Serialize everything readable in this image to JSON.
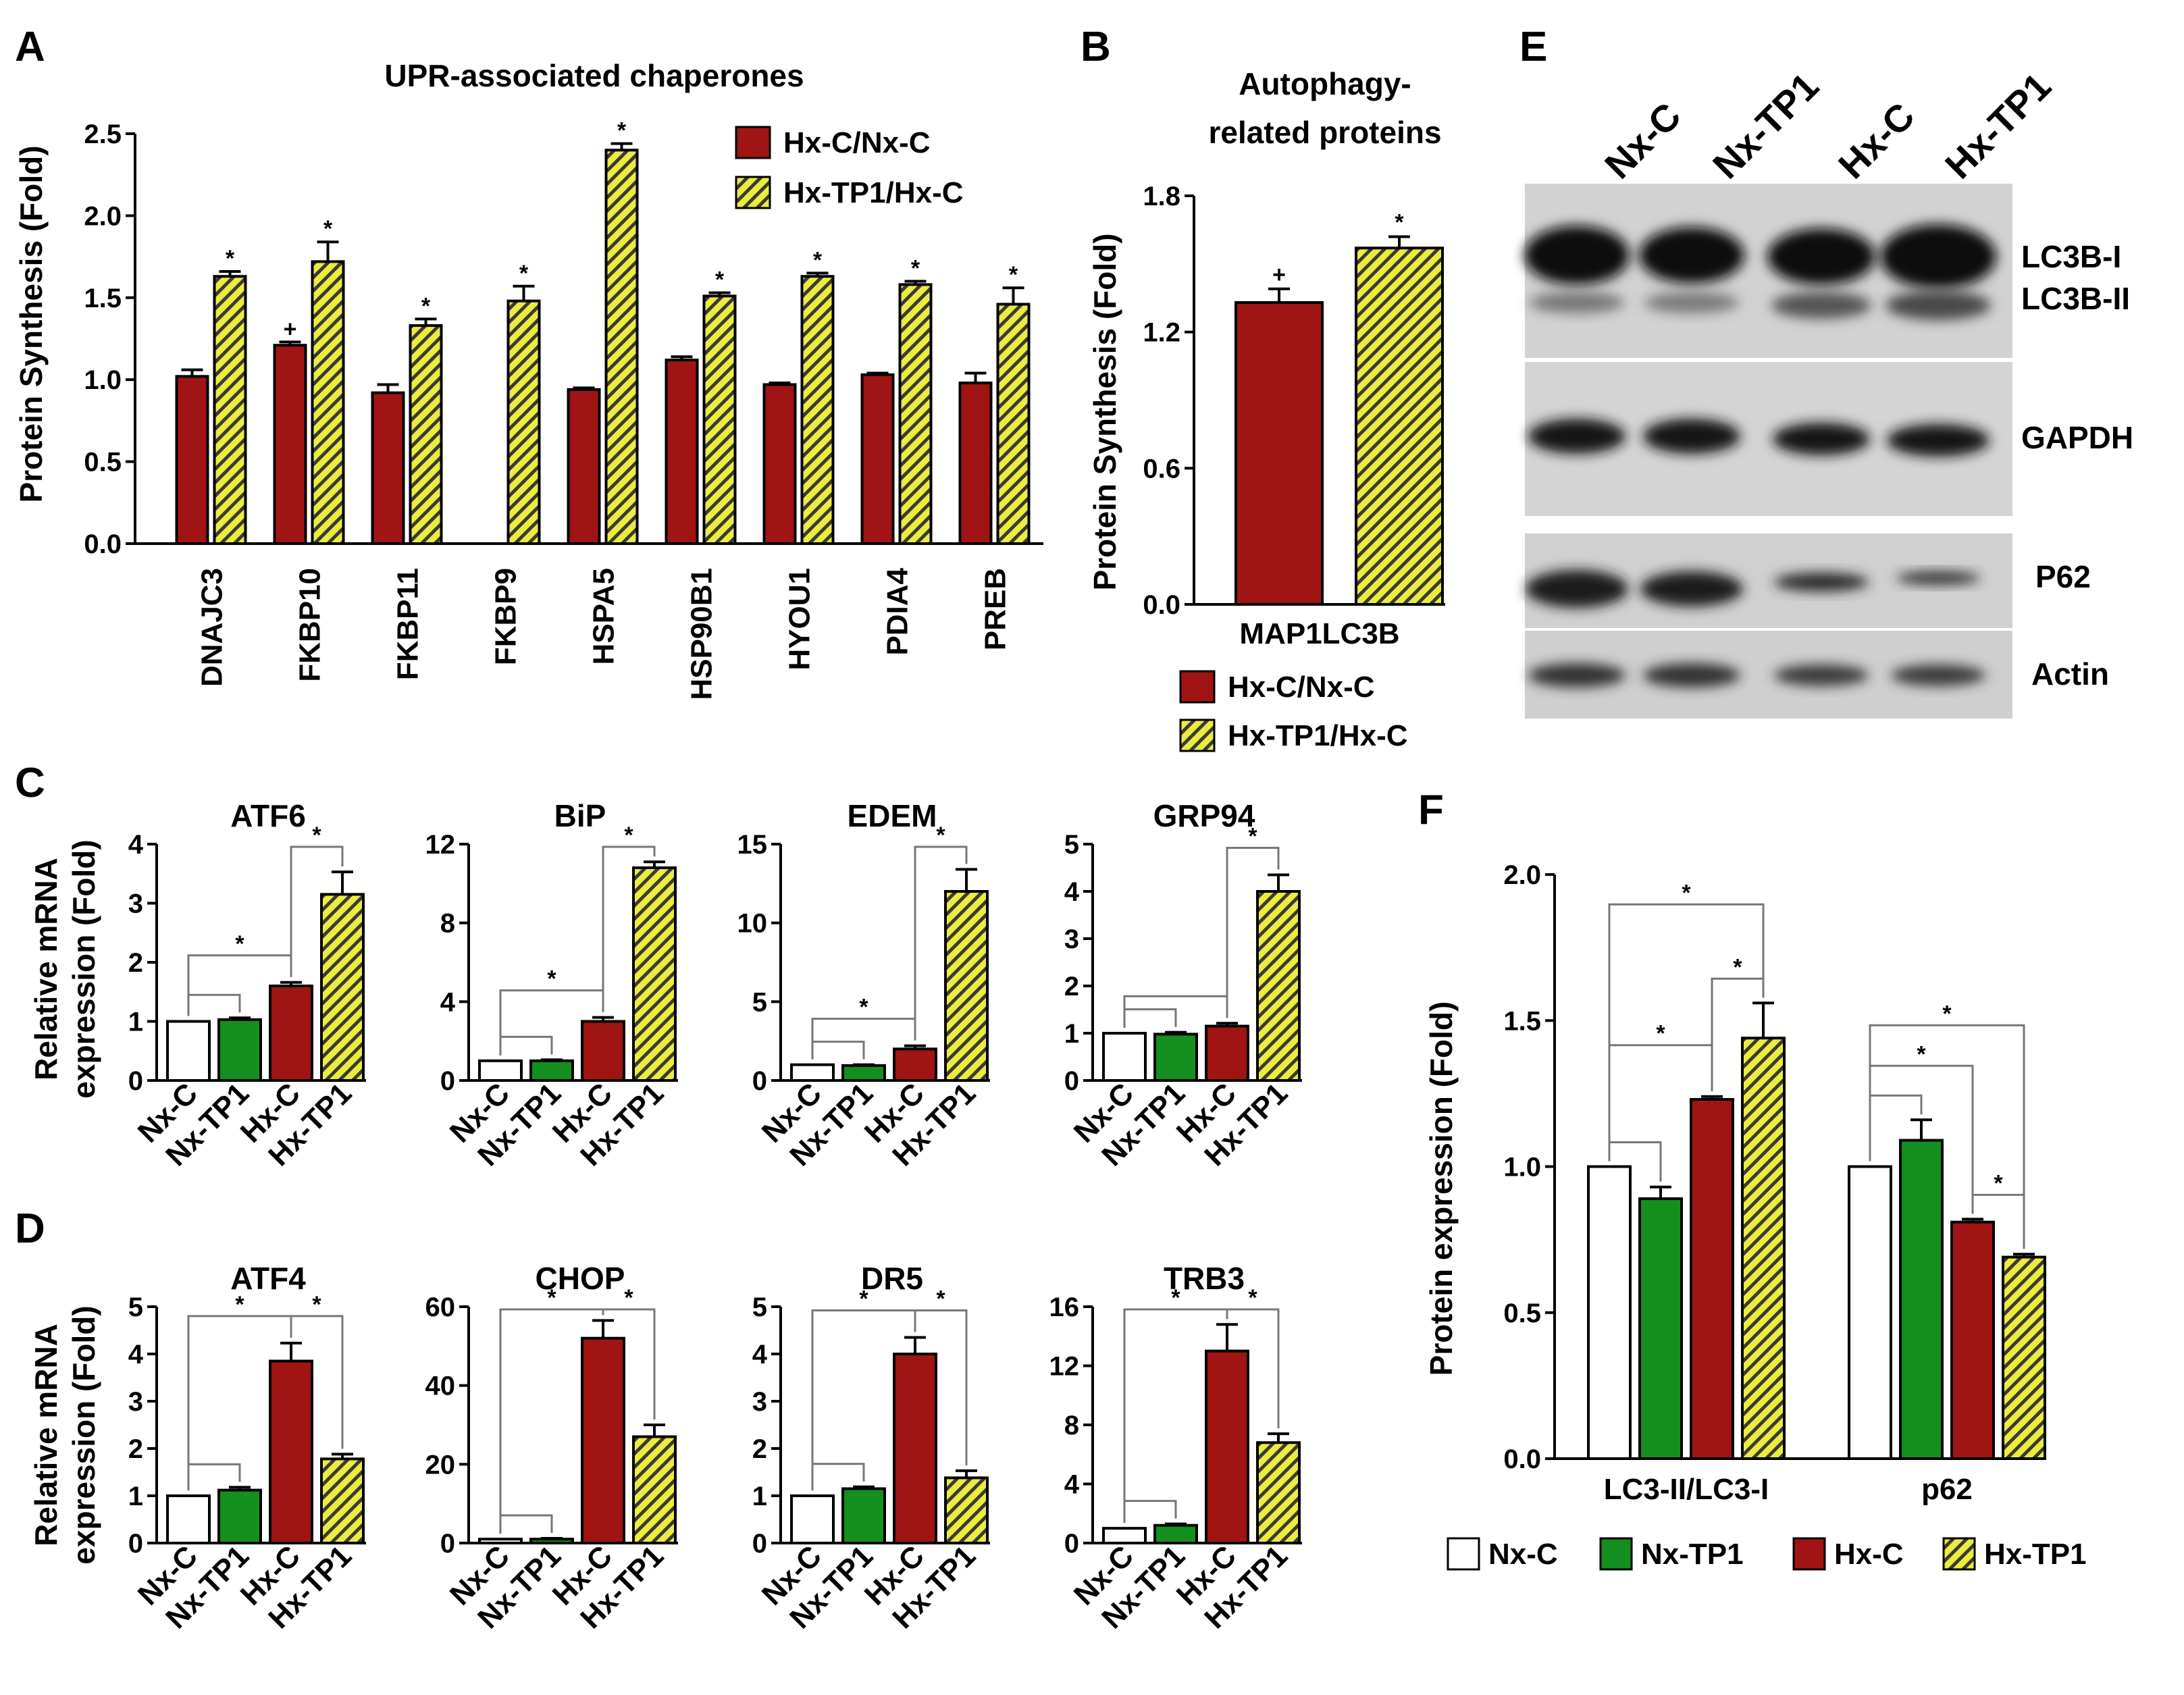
{
  "colors": {
    "hx_c": "#a01414",
    "nx_tp1": "#138f1f",
    "nx_c": "#ffffff",
    "hx_tp1": "#ecec3c",
    "hatch": "#333333"
  },
  "legend_ratio": [
    {
      "label": "Hx-C/Nx-C",
      "pattern": "solid-red"
    },
    {
      "label": "Hx-TP1/Hx-C",
      "pattern": "hatched-yellow"
    }
  ],
  "legend_groups": [
    {
      "label": "Nx-C",
      "pattern": "white"
    },
    {
      "label": "Nx-TP1",
      "pattern": "green"
    },
    {
      "label": "Hx-C",
      "pattern": "red"
    },
    {
      "label": "Hx-TP1",
      "pattern": "hatched-yellow"
    }
  ],
  "groups": [
    "Nx-C",
    "Nx-TP1",
    "Hx-C",
    "Hx-TP1"
  ],
  "panels": {
    "A": {
      "letter": "A",
      "title": "UPR-associated chaperones",
      "ylabel": "Protein Synthesis (Fold)"
    },
    "B": {
      "letter": "B",
      "title_line1": "Autophagy-",
      "title_line2": "related proteins",
      "ylabel": "Protein Synthesis (Fold)"
    },
    "C": {
      "letter": "C",
      "ylabel_line1": "Relative mRNA",
      "ylabel_line2": "expression (Fold)"
    },
    "D": {
      "letter": "D",
      "ylabel_line1": "Relative mRNA",
      "ylabel_line2": "expression (Fold)"
    },
    "E": {
      "letter": "E"
    },
    "F": {
      "letter": "F",
      "ylabel": "Protein expression (Fold)"
    }
  },
  "blot": {
    "lanes": [
      "Nx-C",
      "Nx-TP1",
      "Hx-C",
      "Hx-TP1"
    ],
    "labels": [
      "LC3B-I",
      "LC3B-II",
      "GAPDH",
      "P62",
      "Actin"
    ]
  },
  "chart_data": [
    {
      "id": "A",
      "type": "bar",
      "title": "UPR-associated chaperones",
      "ylabel": "Protein Synthesis (Fold)",
      "ylim": [
        0,
        2.5
      ],
      "yticks": [
        "0.0",
        "0.5",
        "1.0",
        "1.5",
        "2.0",
        "2.5"
      ],
      "categories": [
        "DNAJC3",
        "FKBP10",
        "FKBP11",
        "FKBP9",
        "HSPA5",
        "HSP90B1",
        "HYOU1",
        "PDIA4",
        "PREB"
      ],
      "series": [
        {
          "name": "Hx-C/Nx-C",
          "values": [
            1.02,
            1.21,
            0.92,
            null,
            0.94,
            1.12,
            0.97,
            1.03,
            0.98
          ],
          "errors": [
            0.04,
            0.02,
            0.05,
            null,
            0.01,
            0.02,
            0.01,
            0.01,
            0.06
          ],
          "marks": [
            "",
            "+",
            "",
            "",
            "",
            "",
            "",
            "",
            ""
          ]
        },
        {
          "name": "Hx-TP1/Hx-C",
          "values": [
            1.63,
            1.72,
            1.33,
            1.48,
            2.4,
            1.51,
            1.63,
            1.58,
            1.46
          ],
          "errors": [
            0.03,
            0.12,
            0.04,
            0.09,
            0.04,
            0.02,
            0.02,
            0.02,
            0.1
          ],
          "marks": [
            "*",
            "*",
            "*",
            "*",
            "*",
            "*",
            "*",
            "*",
            "*"
          ]
        }
      ]
    },
    {
      "id": "B",
      "type": "bar",
      "title": "Autophagy-related proteins",
      "ylabel": "Protein Synthesis (Fold)",
      "ylim": [
        0,
        1.8
      ],
      "yticks": [
        "0.0",
        "0.6",
        "1.2",
        "1.8"
      ],
      "categories": [
        "MAP1LC3B"
      ],
      "series": [
        {
          "name": "Hx-C/Nx-C",
          "values": [
            1.33
          ],
          "errors": [
            0.06
          ],
          "marks": [
            "+"
          ]
        },
        {
          "name": "Hx-TP1/Hx-C",
          "values": [
            1.57
          ],
          "errors": [
            0.05
          ],
          "marks": [
            "*"
          ]
        }
      ]
    },
    {
      "id": "C-ATF6",
      "type": "bar",
      "title": "ATF6",
      "ymax": 4,
      "yticks": [
        "0",
        "1",
        "2",
        "3",
        "4"
      ],
      "categories": [
        "Nx-C",
        "Nx-TP1",
        "Hx-C",
        "Hx-TP1"
      ],
      "values": [
        1.0,
        1.03,
        1.6,
        3.15
      ],
      "errors": [
        0,
        0.03,
        0.06,
        0.38
      ],
      "brackets": [
        {
          "from": 0,
          "to": 1,
          "mark": ""
        },
        {
          "from": 0,
          "to": 2,
          "mark": "*"
        },
        {
          "from": 2,
          "to": 3,
          "mark": "*"
        }
      ]
    },
    {
      "id": "C-BiP",
      "type": "bar",
      "title": "BiP",
      "ymax": 12,
      "yticks": [
        "0",
        "4",
        "8",
        "12"
      ],
      "categories": [
        "Nx-C",
        "Nx-TP1",
        "Hx-C",
        "Hx-TP1"
      ],
      "values": [
        1.0,
        1.0,
        3.0,
        10.8
      ],
      "errors": [
        0,
        0.05,
        0.2,
        0.3
      ],
      "brackets": [
        {
          "from": 0,
          "to": 1,
          "mark": ""
        },
        {
          "from": 0,
          "to": 2,
          "mark": "*"
        },
        {
          "from": 2,
          "to": 3,
          "mark": "*"
        }
      ]
    },
    {
      "id": "C-EDEM",
      "type": "bar",
      "title": "EDEM",
      "ymax": 15,
      "yticks": [
        "0",
        "5",
        "10",
        "15"
      ],
      "categories": [
        "Nx-C",
        "Nx-TP1",
        "Hx-C",
        "Hx-TP1"
      ],
      "values": [
        1.0,
        0.95,
        2.0,
        12.0
      ],
      "errors": [
        0,
        0.05,
        0.2,
        1.4
      ],
      "brackets": [
        {
          "from": 0,
          "to": 1,
          "mark": ""
        },
        {
          "from": 0,
          "to": 2,
          "mark": "*"
        },
        {
          "from": 2,
          "to": 3,
          "mark": "*"
        }
      ]
    },
    {
      "id": "C-GRP94",
      "type": "bar",
      "title": "GRP94",
      "ymax": 5,
      "yticks": [
        "0",
        "1",
        "2",
        "3",
        "4",
        "5"
      ],
      "categories": [
        "Nx-C",
        "Nx-TP1",
        "Hx-C",
        "Hx-TP1"
      ],
      "values": [
        1.0,
        0.98,
        1.15,
        4.0
      ],
      "errors": [
        0,
        0.04,
        0.06,
        0.35
      ],
      "brackets": [
        {
          "from": 0,
          "to": 1,
          "mark": ""
        },
        {
          "from": 0,
          "to": 2,
          "mark": ""
        },
        {
          "from": 2,
          "to": 3,
          "mark": "*"
        }
      ]
    },
    {
      "id": "D-ATF4",
      "type": "bar",
      "title": "ATF4",
      "ymax": 5,
      "yticks": [
        "0",
        "1",
        "2",
        "3",
        "4",
        "5"
      ],
      "categories": [
        "Nx-C",
        "Nx-TP1",
        "Hx-C",
        "Hx-TP1"
      ],
      "values": [
        1.0,
        1.12,
        3.85,
        1.78
      ],
      "errors": [
        0,
        0.06,
        0.38,
        0.1
      ],
      "brackets": [
        {
          "from": 0,
          "to": 1,
          "mark": ""
        },
        {
          "from": 0,
          "to": 2,
          "mark": "*"
        },
        {
          "from": 2,
          "to": 3,
          "mark": "*"
        }
      ]
    },
    {
      "id": "D-CHOP",
      "type": "bar",
      "title": "CHOP",
      "ymax": 60,
      "yticks": [
        "0",
        "20",
        "40",
        "60"
      ],
      "categories": [
        "Nx-C",
        "Nx-TP1",
        "Hx-C",
        "Hx-TP1"
      ],
      "values": [
        1.0,
        1.0,
        52.0,
        27.0
      ],
      "errors": [
        0,
        0.2,
        4.5,
        3.0
      ],
      "brackets": [
        {
          "from": 0,
          "to": 1,
          "mark": ""
        },
        {
          "from": 0,
          "to": 2,
          "mark": "*"
        },
        {
          "from": 2,
          "to": 3,
          "mark": "*"
        }
      ]
    },
    {
      "id": "D-DR5",
      "type": "bar",
      "title": "DR5",
      "ymax": 5,
      "yticks": [
        "0",
        "1",
        "2",
        "3",
        "4",
        "5"
      ],
      "categories": [
        "Nx-C",
        "Nx-TP1",
        "Hx-C",
        "Hx-TP1"
      ],
      "values": [
        1.0,
        1.15,
        4.0,
        1.38
      ],
      "errors": [
        0,
        0.04,
        0.35,
        0.15
      ],
      "brackets": [
        {
          "from": 0,
          "to": 1,
          "mark": ""
        },
        {
          "from": 0,
          "to": 2,
          "mark": "*"
        },
        {
          "from": 2,
          "to": 3,
          "mark": "*"
        }
      ]
    },
    {
      "id": "D-TRB3",
      "type": "bar",
      "title": "TRB3",
      "ymax": 16,
      "yticks": [
        "0",
        "4",
        "8",
        "12",
        "16"
      ],
      "categories": [
        "Nx-C",
        "Nx-TP1",
        "Hx-C",
        "Hx-TP1"
      ],
      "values": [
        1.0,
        1.2,
        13.0,
        6.8
      ],
      "errors": [
        0,
        0.1,
        1.8,
        0.6
      ],
      "brackets": [
        {
          "from": 0,
          "to": 1,
          "mark": ""
        },
        {
          "from": 0,
          "to": 2,
          "mark": "*"
        },
        {
          "from": 2,
          "to": 3,
          "mark": "*"
        }
      ]
    },
    {
      "id": "F",
      "type": "bar",
      "ylabel": "Protein expression (Fold)",
      "ylim": [
        0,
        2.0
      ],
      "yticks": [
        "0.0",
        "0.5",
        "1.0",
        "1.5",
        "2.0"
      ],
      "categories": [
        "LC3-II/LC3-I",
        "p62"
      ],
      "series": [
        {
          "name": "Nx-C",
          "values": [
            1.0,
            1.0
          ],
          "errors": [
            0,
            0
          ]
        },
        {
          "name": "Nx-TP1",
          "values": [
            0.89,
            1.09
          ],
          "errors": [
            0.04,
            0.07
          ]
        },
        {
          "name": "Hx-C",
          "values": [
            1.23,
            0.81
          ],
          "errors": [
            0.01,
            0.01
          ]
        },
        {
          "name": "Hx-TP1",
          "values": [
            1.44,
            0.69
          ],
          "errors": [
            0.12,
            0.01
          ]
        }
      ],
      "brackets": [
        {
          "cat": 0,
          "from": 0,
          "to": 1,
          "mark": ""
        },
        {
          "cat": 0,
          "from": 0,
          "to": 2,
          "mark": "*"
        },
        {
          "cat": 0,
          "from": 2,
          "to": 3,
          "mark": "*"
        },
        {
          "cat": 0,
          "from": 0,
          "to": 3,
          "mark": "*"
        },
        {
          "cat": 1,
          "from": 0,
          "to": 1,
          "mark": ""
        },
        {
          "cat": 1,
          "from": 0,
          "to": 2,
          "mark": "*"
        },
        {
          "cat": 1,
          "from": 0,
          "to": 3,
          "mark": "*"
        },
        {
          "cat": 1,
          "from": 2,
          "to": 3,
          "mark": "*"
        }
      ]
    }
  ]
}
